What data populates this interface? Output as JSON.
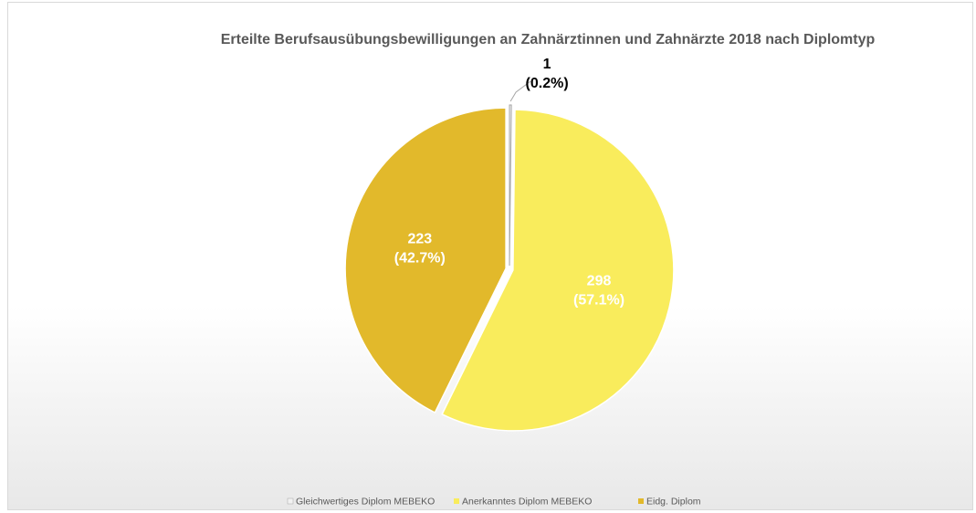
{
  "chart_data": {
    "type": "pie",
    "title": "Erteilte Berufsausübungsbewilligungen an Zahnärztinnen und Zahnärzte 2018 nach Diplomtyp",
    "categories": [
      "Gleichwertiges Diplom MEBEKO",
      "Anerkanntes Diplom MEBEKO",
      "Eidg. Diplom"
    ],
    "values": [
      1,
      298,
      223
    ],
    "percent_labels": [
      "(0.2%)",
      "(57.1%)",
      "(42.7%)"
    ],
    "colors": [
      "#f2f2f2",
      "#f9ec5c",
      "#e2b92b"
    ],
    "legend": "bottom"
  }
}
